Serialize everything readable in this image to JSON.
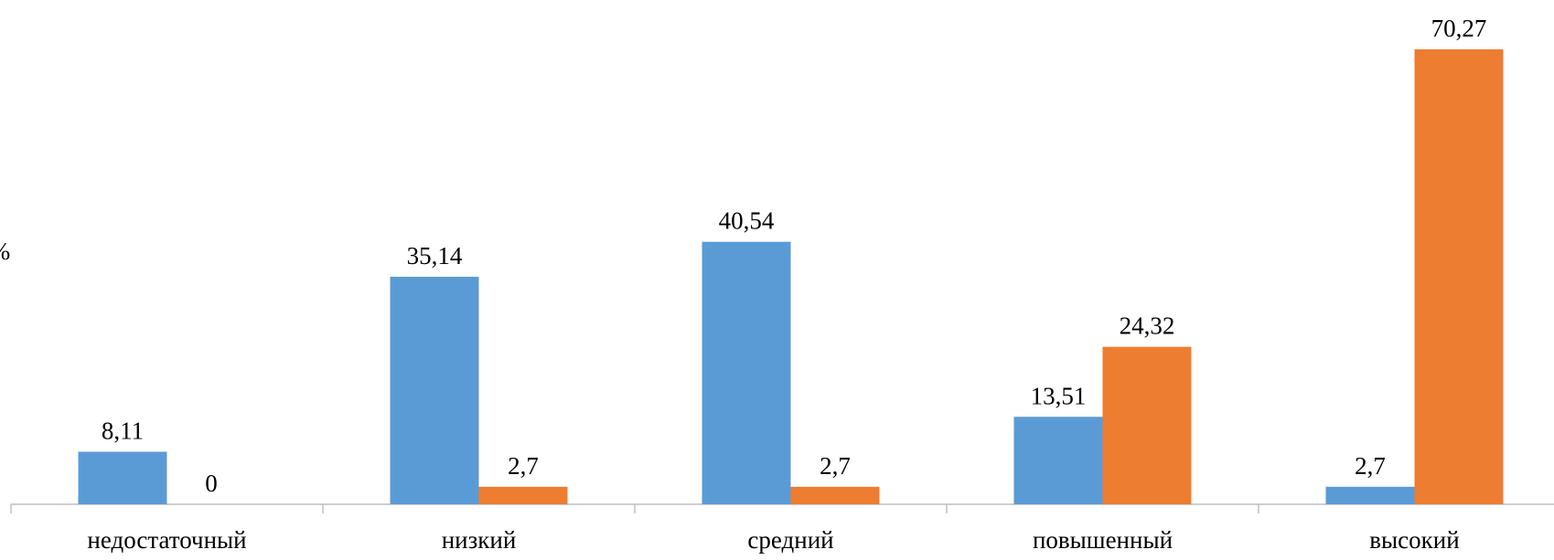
{
  "chart_data": {
    "type": "bar",
    "categories": [
      "недостаточный",
      "низкий",
      "средний",
      "повышенный",
      "высокий"
    ],
    "series": [
      {
        "values": [
          8.11,
          35.14,
          40.54,
          13.51,
          2.7
        ]
      },
      {
        "values": [
          0,
          2.7,
          2.7,
          24.32,
          70.27
        ]
      }
    ],
    "data_labels": [
      [
        "8,11",
        "35,14",
        "40,54",
        "13,51",
        "2,7"
      ],
      [
        "0",
        "2,7",
        "2,7",
        "24,32",
        "70,27"
      ]
    ],
    "ylim": [
      0,
      70.27
    ],
    "grid": false,
    "legend": "none",
    "colors": [
      "#5B9BD5",
      "#ED7D31"
    ],
    "axis_color": "#BFBFBF",
    "edge_glyph": "%"
  }
}
